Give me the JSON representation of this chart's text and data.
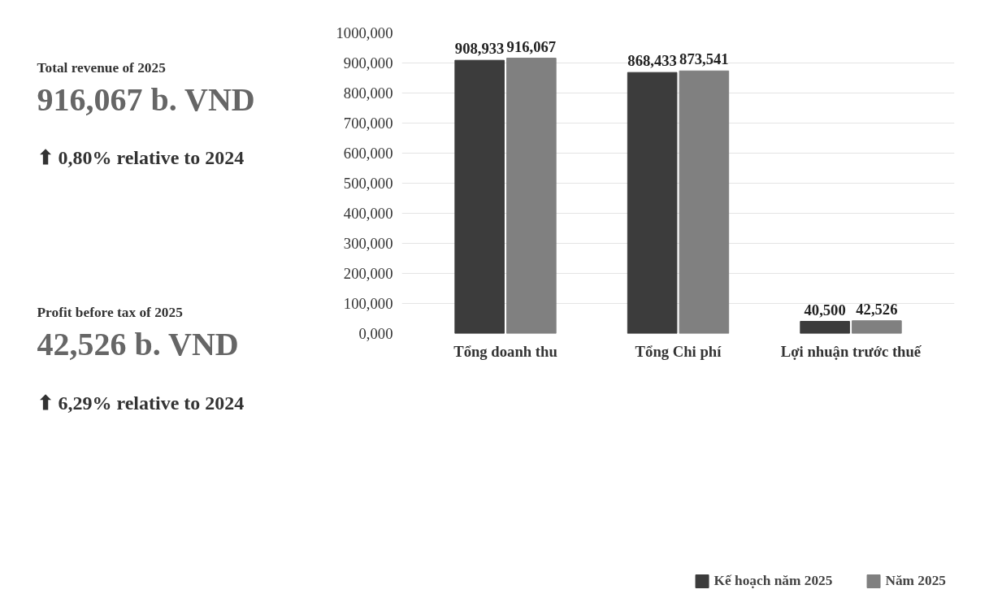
{
  "chart_data": [
    {
      "type": "other",
      "annotations": [
        "Total revenue of 2025",
        "916,067 b. VND",
        "⬆ 0,80% relative to 2024",
        "Profit before tax of 2025",
        "42,526 b. VND",
        "⬆ 6,29% relative to 2024"
      ]
    },
    {
      "type": "bar",
      "categories": [
        "Tổng doanh thu",
        "Tổng Chi phí",
        "Lợi nhuận trước thuế"
      ],
      "series": [
        {
          "name": "Kế hoạch năm 2025",
          "color": "#3c3c3c",
          "values": [
            908.933,
            868.433,
            40.5
          ],
          "value_labels": [
            "908,933",
            "868,433",
            "40,500"
          ]
        },
        {
          "name": "Năm 2025",
          "color": "#808080",
          "values": [
            916.067,
            873.541,
            42.526
          ],
          "value_labels": [
            "916,067",
            "873,541",
            "42,526"
          ]
        }
      ],
      "ylim": [
        0,
        1000
      ],
      "yticks": [
        {
          "value": 0,
          "label": "0,000"
        },
        {
          "value": 100,
          "label": "100,000"
        },
        {
          "value": 200,
          "label": "200,000"
        },
        {
          "value": 300,
          "label": "300,000"
        },
        {
          "value": 400,
          "label": "400,000"
        },
        {
          "value": 500,
          "label": "500,000"
        },
        {
          "value": 600,
          "label": "600,000"
        },
        {
          "value": 700,
          "label": "700,000"
        },
        {
          "value": 800,
          "label": "800,000"
        },
        {
          "value": 900,
          "label": "900,000"
        },
        {
          "value": 1000,
          "label": "1000,000"
        }
      ],
      "grid": "y",
      "legend": "bottom"
    }
  ]
}
